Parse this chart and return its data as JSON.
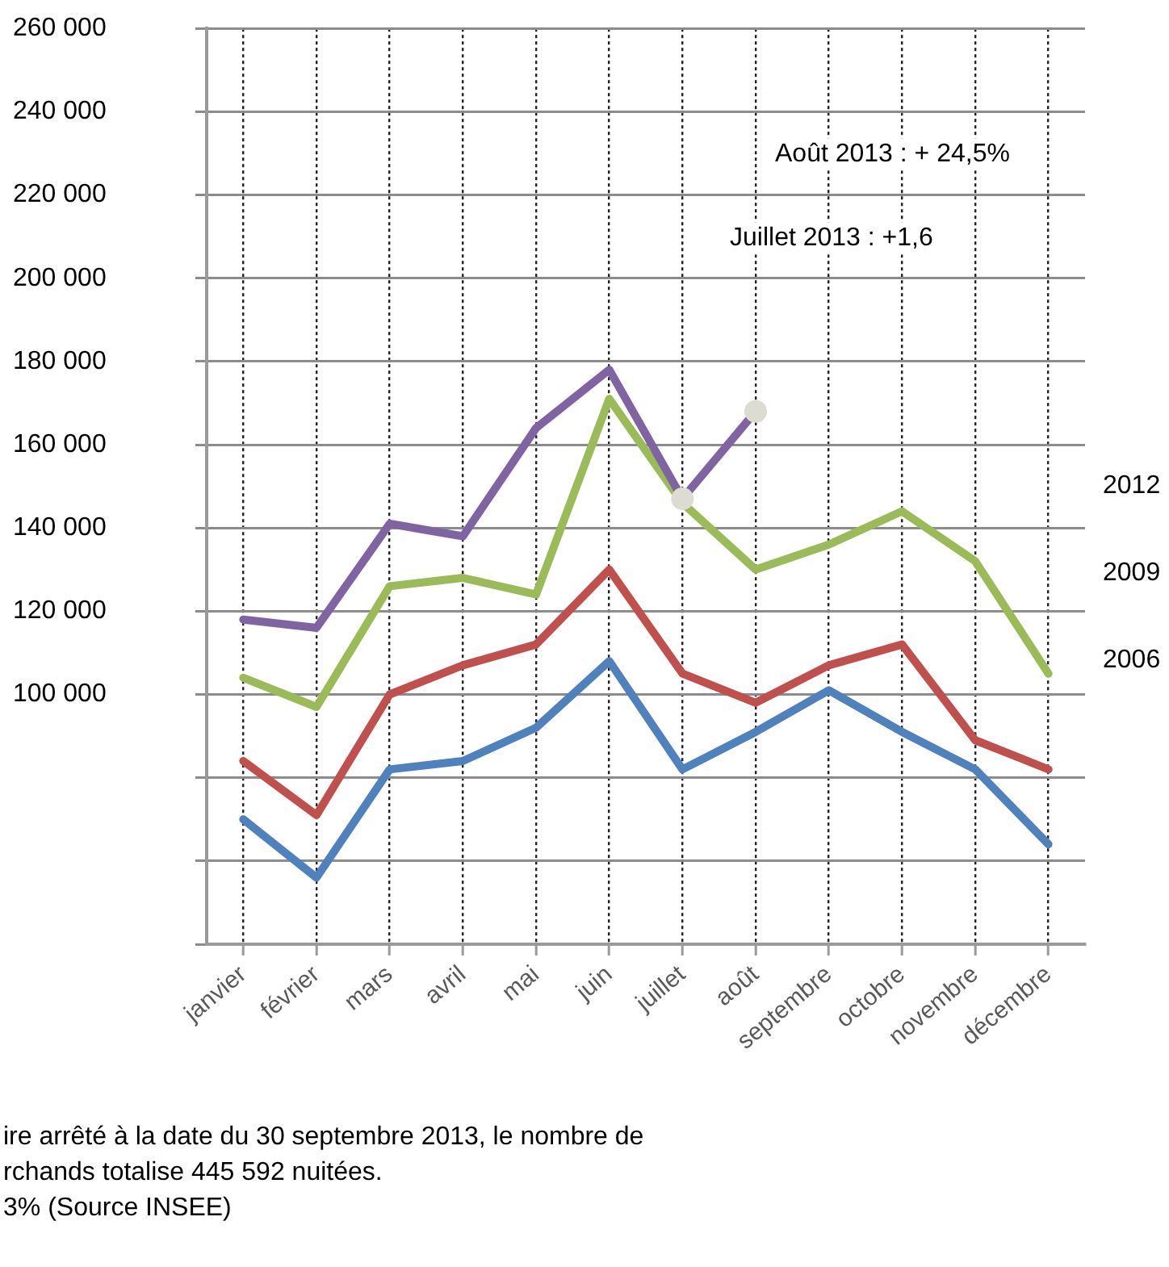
{
  "chart_data": {
    "type": "line",
    "categories": [
      "janvier",
      "février",
      "mars",
      "avril",
      "mai",
      "juin",
      "juillet",
      "août",
      "septembre",
      "octobre",
      "novembre",
      "décembre"
    ],
    "series": [
      {
        "color": "#8064a2",
        "values": [
          118000,
          116000,
          141000,
          138000,
          164000,
          178000,
          147000,
          168000,
          null,
          null,
          null,
          null
        ]
      },
      {
        "name": "2012",
        "color": "#9bbb59",
        "values": [
          104000,
          97000,
          126000,
          128000,
          124000,
          171000,
          146000,
          130000,
          136000,
          144000,
          132000,
          105000
        ]
      },
      {
        "name": "2009",
        "color": "#c0504d",
        "values": [
          84000,
          71000,
          100000,
          107000,
          112000,
          130000,
          105000,
          98000,
          107000,
          112000,
          89000,
          82000
        ]
      },
      {
        "name": "2006",
        "color": "#4f81bd",
        "values": [
          70000,
          56000,
          82000,
          84000,
          92000,
          108000,
          82000,
          91000,
          101000,
          91000,
          82000,
          64000
        ]
      },
      {
        "type": "scatter",
        "color": "#dcdcd2",
        "x": [
          "juillet",
          "août"
        ],
        "values": [
          147000,
          168000
        ]
      }
    ],
    "ylim": [
      40000,
      260000
    ],
    "yticks": [
      {
        "value": 40000,
        "label": null
      },
      {
        "value": 60000,
        "label": null
      },
      {
        "value": 80000,
        "label": null
      },
      {
        "value": 100000,
        "label": "100 000"
      },
      {
        "value": 120000,
        "label": "120 000"
      },
      {
        "value": 140000,
        "label": "140 000"
      },
      {
        "value": 160000,
        "label": "160 000"
      },
      {
        "value": 180000,
        "label": "180 000"
      },
      {
        "value": 200000,
        "label": "200 000"
      },
      {
        "value": 220000,
        "label": "220 000"
      },
      {
        "value": 240000,
        "label": "240 000"
      },
      {
        "value": 260000,
        "label": "260 000"
      }
    ],
    "grid": true,
    "annotations": [
      "Août 2013 : + 24,5%",
      "Juillet 2013 : +1,6",
      "ire arrêté à la date du 30 septembre 2013, le nombre de",
      "rchands totalise 445 592 nuitées.",
      "3% (Source INSEE)"
    ]
  }
}
